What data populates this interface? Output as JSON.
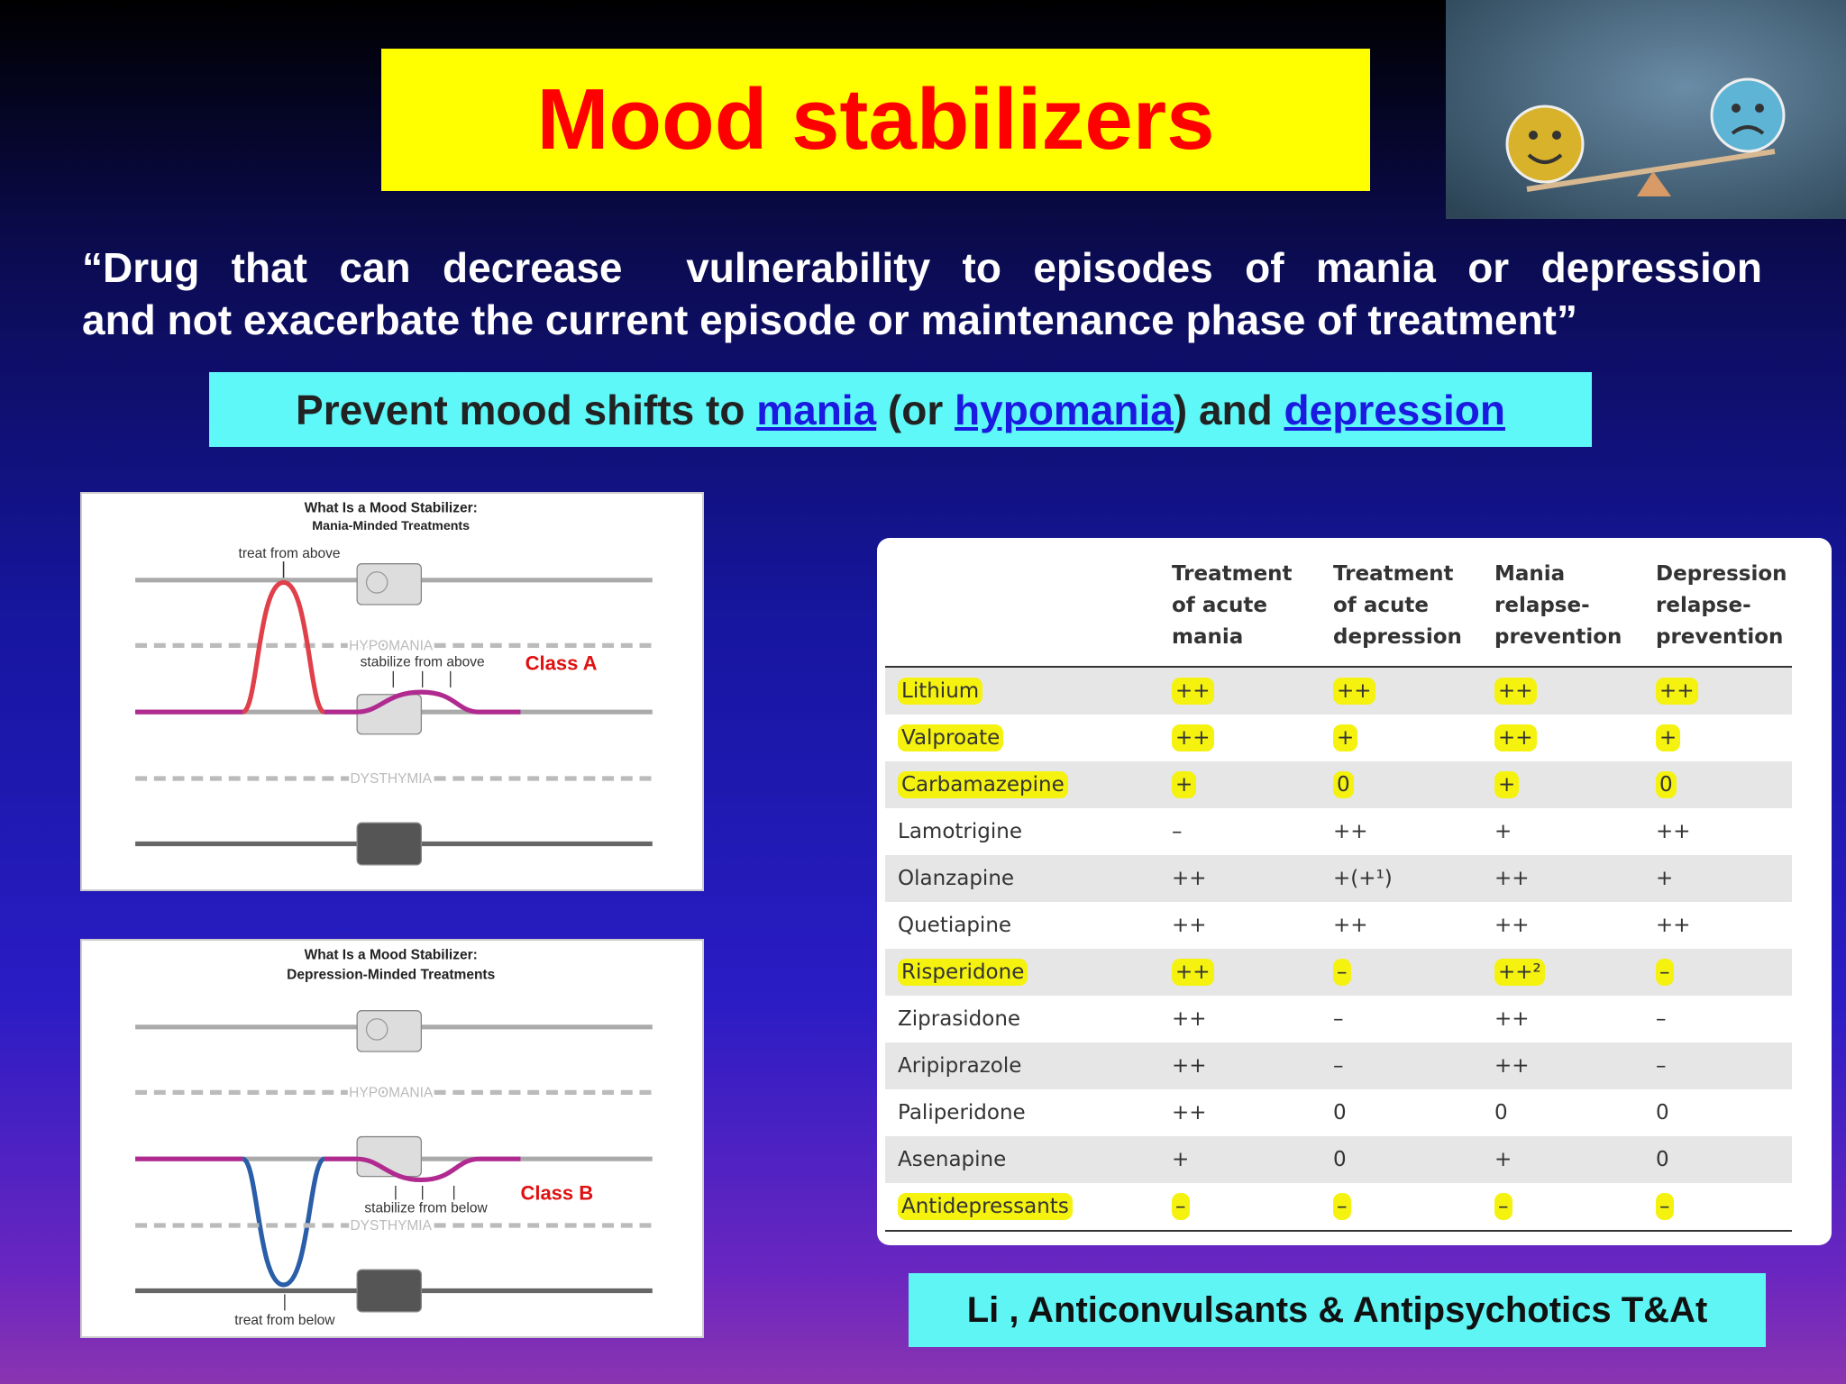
{
  "title": "Mood stabilizers",
  "definition": [
    "“Drug that can decrease  vulnerability to episodes of mania or depression",
    "and not exacerbate the current episode or maintenance phase of treatment”"
  ],
  "tagline": {
    "text1": "Prevent mood shifts to ",
    "link1": "mania",
    "text2": " (or ",
    "link2": "hypomania",
    "text3": ") and ",
    "link3": "depression"
  },
  "diagram_a": {
    "title": "What Is a Mood Stabilizer:",
    "subtitle": "Mania-Minded Treatments",
    "treat": "treat from above",
    "hypomania": "HYPOMANIA",
    "stabilize": "stabilize from above",
    "dysthymia": "DYSTHYMIA",
    "class": "Class A"
  },
  "diagram_b": {
    "title": "What Is a Mood Stabilizer:",
    "subtitle": "Depression-Minded Treatments",
    "hypomania": "HYPOMANIA",
    "stabilize": "stabilize from below",
    "dysthymia": "DYSTHYMIA",
    "treat": "treat from below",
    "class": "Class B"
  },
  "table": {
    "columns": [
      [
        "Treatment",
        "of acute",
        "mania"
      ],
      [
        "Treatment",
        "of acute",
        "depression"
      ],
      [
        "Mania",
        "relapse-",
        "prevention"
      ],
      [
        "Depression",
        "relapse-",
        "prevention"
      ]
    ],
    "rows": [
      {
        "drug": "Lithium",
        "values": [
          "++",
          "++",
          "++",
          "++"
        ],
        "highlight": true
      },
      {
        "drug": "Valproate",
        "values": [
          "++",
          "+",
          "++",
          "+"
        ],
        "highlight": true
      },
      {
        "drug": "Carbamazepine",
        "values": [
          "+",
          "0",
          "+",
          "0"
        ],
        "highlight": true
      },
      {
        "drug": "Lamotrigine",
        "values": [
          "–",
          "++",
          "+",
          "++"
        ],
        "highlight": false
      },
      {
        "drug": "Olanzapine",
        "values": [
          "++",
          "+(+¹)",
          "++",
          "+"
        ],
        "highlight": false
      },
      {
        "drug": "Quetiapine",
        "values": [
          "++",
          "++",
          "++",
          "++"
        ],
        "highlight": false
      },
      {
        "drug": "Risperidone",
        "values": [
          "++",
          "–",
          "++²",
          "–"
        ],
        "highlight": true
      },
      {
        "drug": "Ziprasidone",
        "values": [
          "++",
          "–",
          "++",
          "–"
        ],
        "highlight": false
      },
      {
        "drug": "Aripiprazole",
        "values": [
          "++",
          "–",
          "++",
          "–"
        ],
        "highlight": false
      },
      {
        "drug": "Paliperidone",
        "values": [
          "++",
          "0",
          "0",
          "0"
        ],
        "highlight": false
      },
      {
        "drug": "Asenapine",
        "values": [
          "+",
          "0",
          "+",
          "0"
        ],
        "highlight": false
      },
      {
        "drug": "Antidepressants",
        "values": [
          "–",
          "–",
          "–",
          "–"
        ],
        "highlight": true
      }
    ]
  },
  "footer": "Li , Anticonvulsants & Antipsychotics T&At"
}
